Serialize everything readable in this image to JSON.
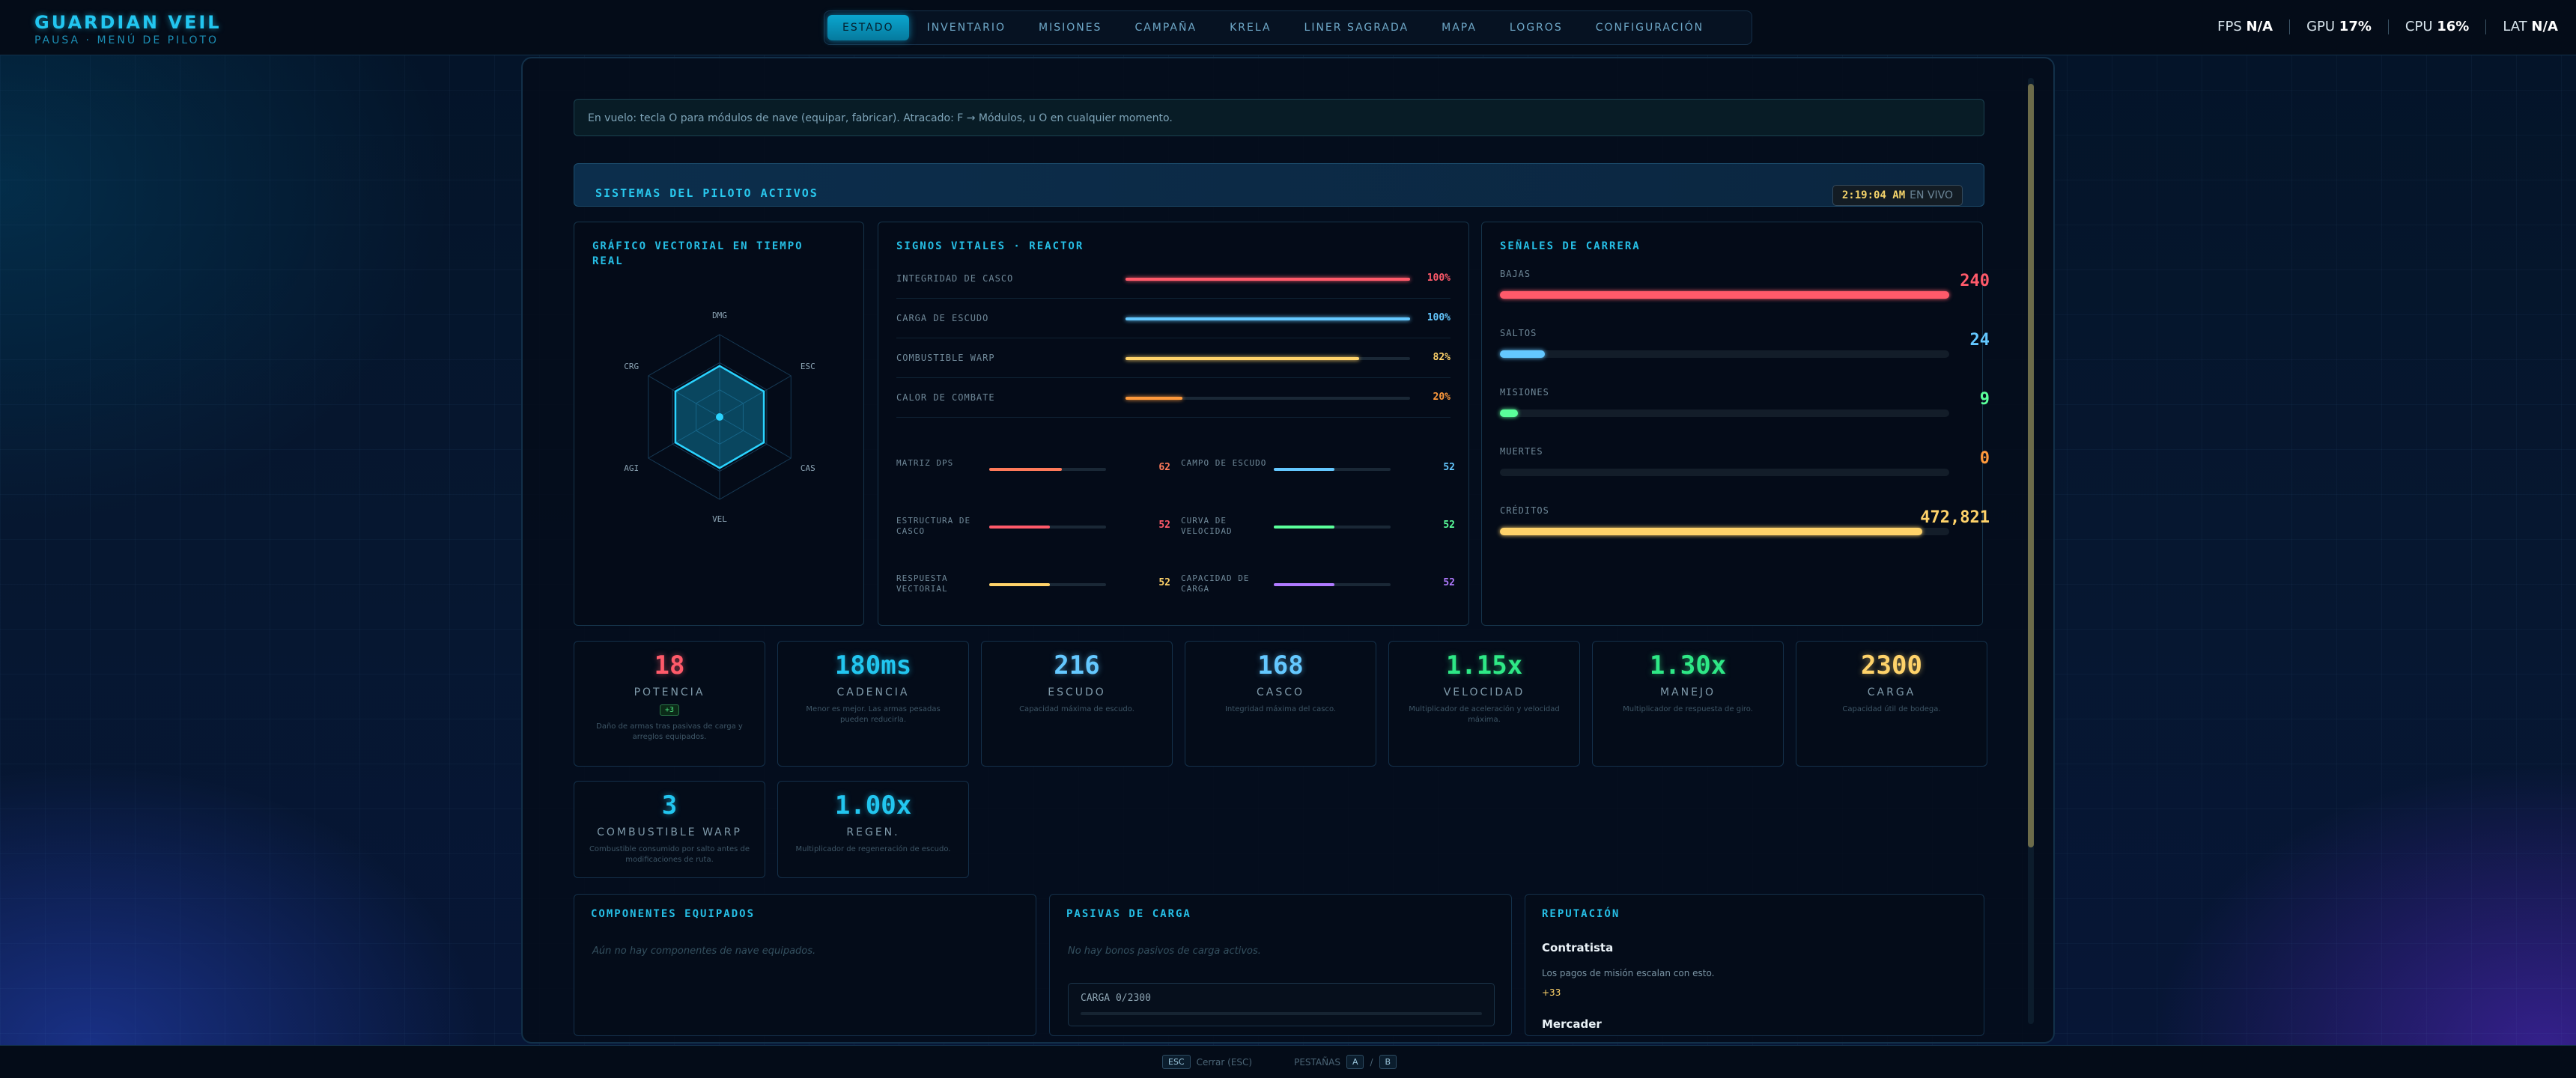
{
  "brand": {
    "title": "GUARDIAN VEIL",
    "subtitle": "PAUSA · MENÚ DE PILOTO"
  },
  "nav": {
    "tabs": [
      "ESTADO",
      "INVENTARIO",
      "MISIONES",
      "CAMPAÑA",
      "KRELA",
      "LINER SAGRADA",
      "MAPA",
      "LOGROS",
      "CONFIGURACIÓN"
    ],
    "active": "ESTADO"
  },
  "perf": {
    "fps_label": "FPS",
    "fps": "N/A",
    "gpu_label": "GPU",
    "gpu": "17%",
    "cpu_label": "CPU",
    "cpu": "16%",
    "lat_label": "LAT",
    "lat": "N/A"
  },
  "notice": "En vuelo: tecla O para módulos de nave (equipar, fabricar). Atracado: F → Módulos, u O en cualquier momento.",
  "systems": {
    "title": "SISTEMAS DEL PILOTO ACTIVOS",
    "clock": "2:19:04 AM",
    "live": "EN VIVO"
  },
  "radar": {
    "title": "GRÁFICO VECTORIAL EN TIEMPO REAL",
    "axes": [
      "DMG",
      "ESC",
      "CAS",
      "VEL",
      "AGI",
      "CRG"
    ],
    "values": [
      0.5,
      0.5,
      0.5,
      0.5,
      0.5,
      0.5
    ]
  },
  "vitals": {
    "title": "SIGNOS VITALES · REACTOR",
    "rows": [
      {
        "label": "INTEGRIDAD DE CASCO",
        "value": "100%",
        "fill": 1.0,
        "color": "#ff5a6a"
      },
      {
        "label": "CARGA DE ESCUDO",
        "value": "100%",
        "fill": 1.0,
        "color": "#64c8ff"
      },
      {
        "label": "COMBUSTIBLE WARP",
        "value": "82%",
        "fill": 0.82,
        "color": "#ffd36a"
      },
      {
        "label": "CALOR DE COMBATE",
        "value": "20%",
        "fill": 0.2,
        "color": "#ff9a3c"
      }
    ],
    "subs": [
      {
        "label": "MATRIZ DPS",
        "value": "62",
        "fill": 0.62,
        "color": "#ff7a5a"
      },
      {
        "label": "CAMPO DE ESCUDO",
        "value": "52",
        "fill": 0.52,
        "color": "#64c8ff"
      },
      {
        "label": "ESTRUCTURA DE CASCO",
        "value": "52",
        "fill": 0.52,
        "color": "#ff5a6a"
      },
      {
        "label": "CURVA DE VELOCIDAD",
        "value": "52",
        "fill": 0.52,
        "color": "#5aff9a"
      },
      {
        "label": "RESPUESTA VECTORIAL",
        "value": "52",
        "fill": 0.52,
        "color": "#ffd36a"
      },
      {
        "label": "CAPACIDAD DE CARGA",
        "value": "52",
        "fill": 0.52,
        "color": "#b07aff"
      }
    ]
  },
  "career": {
    "title": "SEÑALES DE CARRERA",
    "rows": [
      {
        "label": "BAJAS",
        "value": "240",
        "fill": 1.0,
        "color": "#ff5a6a"
      },
      {
        "label": "SALTOS",
        "value": "24",
        "fill": 0.1,
        "color": "#64c8ff"
      },
      {
        "label": "MISIONES",
        "value": "9",
        "fill": 0.04,
        "color": "#5aff9a"
      },
      {
        "label": "MUERTES",
        "value": "0",
        "fill": 0,
        "color": "#ff9a3c"
      },
      {
        "label": "CRÉDITOS",
        "value": "472,821",
        "fill": 0.94,
        "color": "#ffd36a"
      }
    ]
  },
  "stats": [
    {
      "value": "18",
      "label": "POTENCIA",
      "badge": "+3",
      "desc": "Daño de armas tras pasivas de carga y arreglos equipados.",
      "color": "#ff5a6a"
    },
    {
      "value": "180ms",
      "label": "CADENCIA",
      "desc": "Menor es mejor. Las armas pesadas pueden reducirla.",
      "color": "#22c6f0"
    },
    {
      "value": "216",
      "label": "ESCUDO",
      "desc": "Capacidad máxima de escudo.",
      "color": "#64c8ff"
    },
    {
      "value": "168",
      "label": "CASCO",
      "desc": "Integridad máxima del casco.",
      "color": "#64c8ff"
    },
    {
      "value": "1.15x",
      "label": "VELOCIDAD",
      "desc": "Multiplicador de aceleración y velocidad máxima.",
      "color": "#2ee886"
    },
    {
      "value": "1.30x",
      "label": "MANEJO",
      "desc": "Multiplicador de respuesta de giro.",
      "color": "#2ee886"
    },
    {
      "value": "2300",
      "label": "CARGA",
      "desc": "Capacidad útil de bodega.",
      "color": "#ffd36a"
    },
    {
      "value": "3",
      "label": "COMBUSTIBLE WARP",
      "desc": "Combustible consumido por salto antes de modificaciones de ruta.",
      "color": "#22c6f0"
    },
    {
      "value": "1.00x",
      "label": "REGEN.",
      "desc": "Multiplicador de regeneración de escudo.",
      "color": "#22c6f0"
    }
  ],
  "components": {
    "title": "COMPONENTES EQUIPADOS",
    "empty": "Aún no hay componentes de nave equipados."
  },
  "cargo_passives": {
    "title": "PASIVAS DE CARGA",
    "empty": "No hay bonos pasivos de carga activos.",
    "load": "CARGA 0/2300"
  },
  "reputation": {
    "title": "REPUTACIÓN",
    "factions": [
      {
        "name": "Contratista",
        "desc": "Los pagos de misión escalan con esto.",
        "value": "+33"
      },
      {
        "name": "Mercader"
      }
    ]
  },
  "footer": {
    "esc_key": "ESC",
    "esc_label": "Cerrar (ESC)",
    "tabs_label": "PESTAÑAS",
    "key_a": "A",
    "key_b": "B"
  }
}
